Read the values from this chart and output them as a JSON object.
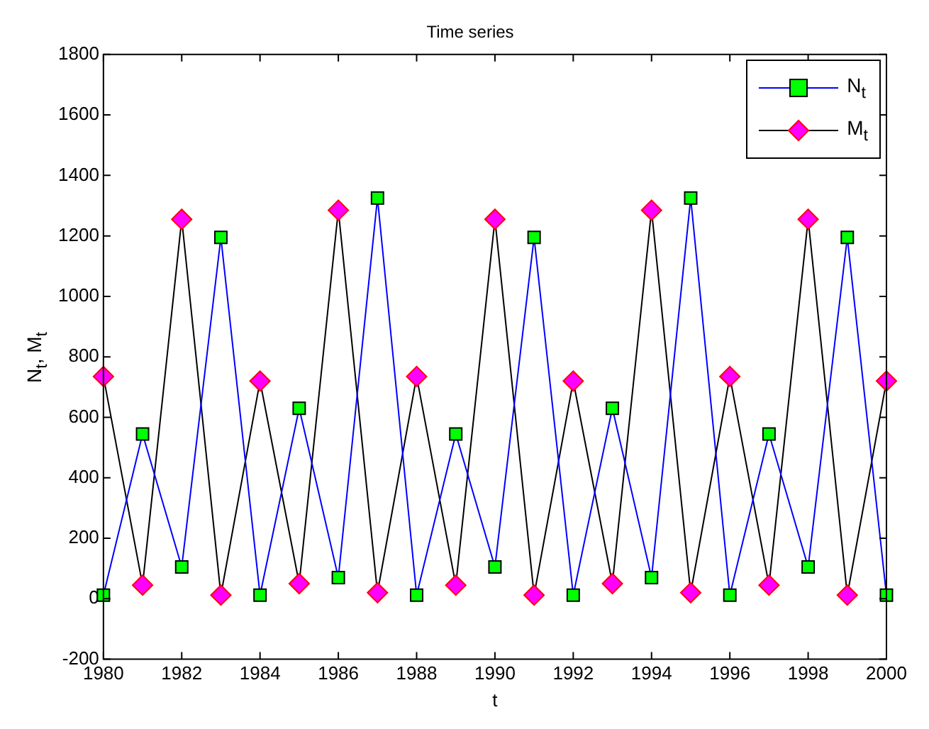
{
  "chart_data": {
    "type": "line",
    "title": "Time series",
    "xlabel": "t",
    "ylabel": "N$_{t}$, M$_{t}$",
    "x": [
      1980,
      1981,
      1982,
      1983,
      1984,
      1985,
      1986,
      1987,
      1988,
      1989,
      1990,
      1991,
      1992,
      1993,
      1994,
      1995,
      1996,
      1997,
      1998,
      1999,
      2000
    ],
    "series": [
      {
        "name": "N$_{t}$",
        "color": "#0000ff",
        "marker": "square",
        "values": [
          12,
          545,
          105,
          1195,
          12,
          630,
          70,
          1325,
          12,
          545,
          105,
          1195,
          12,
          630,
          70,
          1325,
          12,
          545,
          105,
          1195,
          12
        ]
      },
      {
        "name": "M$_{t}$",
        "color": "#000000",
        "marker": "diamond",
        "values": [
          735,
          45,
          1255,
          12,
          720,
          50,
          1285,
          20,
          735,
          45,
          1255,
          12,
          720,
          50,
          1285,
          20,
          735,
          45,
          1255,
          12,
          720
        ]
      }
    ],
    "xlim": [
      1980,
      2000
    ],
    "xticks": [
      1980,
      1982,
      1984,
      1986,
      1988,
      1990,
      1992,
      1994,
      1996,
      1998,
      2000
    ],
    "ylim": [
      -200,
      1800
    ],
    "yticks": [
      -200,
      0,
      200,
      400,
      600,
      800,
      1000,
      1200,
      1400,
      1600,
      1800
    ],
    "grid": false,
    "legend": "top right",
    "line_style": "solid"
  }
}
